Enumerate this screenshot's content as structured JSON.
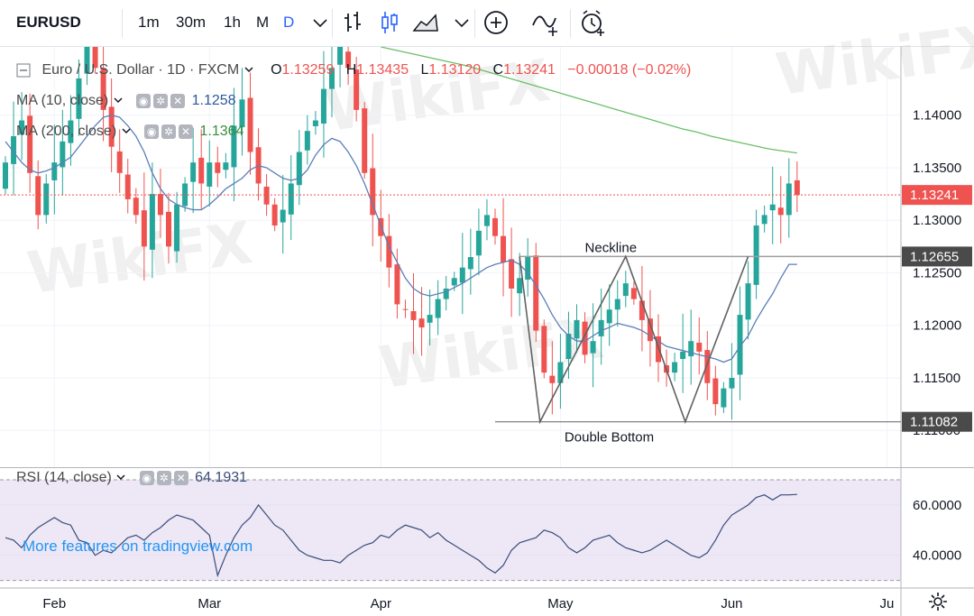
{
  "symbol": "EURUSD",
  "intervals": [
    {
      "label": "1m",
      "active": false
    },
    {
      "label": "30m",
      "active": false
    },
    {
      "label": "1h",
      "active": false
    },
    {
      "label": "M",
      "active": false
    },
    {
      "label": "D",
      "active": true
    }
  ],
  "toolbar_icons": [
    "chevron-down-icon",
    "bar-chart-icon",
    "candlestick-icon",
    "area-chart-icon",
    "chevron-down-icon",
    "plus-circle-icon",
    "indicator-icon",
    "alarm-clock-icon"
  ],
  "legend": {
    "title": "Euro / U.S. Dollar · 1D · FXCM",
    "o_label": "O",
    "o_value": "1.13259",
    "h_label": "H",
    "h_value": "1.13435",
    "l_label": "L",
    "l_value": "1.13120",
    "c_label": "C",
    "c_value": "1.13241",
    "change": "−0.00018 (−0.02%)",
    "ma10_label": "MA (10, close)",
    "ma10_value": "1.1258",
    "ma200_label": "MA (200, close)",
    "ma200_value": "1.1364"
  },
  "rsi_legend": {
    "label": "RSI (14, close)",
    "value": "64.1931"
  },
  "tradingview_link": "More features on tradingview.com",
  "watermark_text": "WikiFX",
  "colors": {
    "up": "#26a69a",
    "down": "#ef5350",
    "ma10": "#5b7fb8",
    "ma200": "#6abf69",
    "rsi": "#7e57c2",
    "price_tag": "#4a4a4a",
    "last_price": "#ef5350"
  },
  "chart_data": {
    "type": "candlestick",
    "annotations": {
      "neckline_label": "Neckline",
      "neckline_price": 1.12655,
      "neckline_price_label": "1.12655",
      "double_bottom_label": "Double Bottom",
      "double_bottom_price": 1.11082,
      "double_bottom_price_label": "1.11082",
      "last_price": 1.13241,
      "last_price_label": "1.13241"
    },
    "y_ticks": [
      "1.14000",
      "1.13500",
      "1.13000",
      "1.12500",
      "1.12000",
      "1.11500",
      "1.11000"
    ],
    "y_tick_values": [
      1.14,
      1.135,
      1.13,
      1.125,
      1.12,
      1.115,
      1.11
    ],
    "ylim": [
      1.1065,
      1.1465
    ],
    "x_ticks": [
      {
        "label": "Feb",
        "index": 6
      },
      {
        "label": "Mar",
        "index": 25
      },
      {
        "label": "Apr",
        "index": 46
      },
      {
        "label": "May",
        "index": 68
      },
      {
        "label": "Jun",
        "index": 89
      },
      {
        "label": "Ju",
        "index": 108
      }
    ],
    "closes": [
      1.1355,
      1.138,
      1.1395,
      1.1345,
      1.1305,
      1.1335,
      1.1355,
      1.1375,
      1.1395,
      1.1435,
      1.147,
      1.1445,
      1.1405,
      1.137,
      1.1345,
      1.132,
      1.1305,
      1.1275,
      1.1325,
      1.1305,
      1.1275,
      1.1315,
      1.1335,
      1.1355,
      1.1335,
      1.1355,
      1.1345,
      1.1355,
      1.139,
      1.1415,
      1.1365,
      1.1335,
      1.1315,
      1.1295,
      1.131,
      1.1335,
      1.1365,
      1.1385,
      1.1395,
      1.1425,
      1.1445,
      1.1465,
      1.1445,
      1.1405,
      1.1345,
      1.1305,
      1.1285,
      1.1255,
      1.122,
      1.1215,
      1.1205,
      1.1198,
      1.121,
      1.1225,
      1.1235,
      1.1245,
      1.1255,
      1.1265,
      1.129,
      1.1305,
      1.1285,
      1.126,
      1.1235,
      1.1245,
      1.1265,
      1.1195,
      1.1155,
      1.1145,
      1.1165,
      1.1192,
      1.1205,
      1.1172,
      1.1185,
      1.1205,
      1.1215,
      1.1225,
      1.124,
      1.1225,
      1.1205,
      1.1185,
      1.1165,
      1.1155,
      1.1165,
      1.1175,
      1.1185,
      1.1175,
      1.1145,
      1.1125,
      1.114,
      1.115,
      1.121,
      1.124,
      1.1295,
      1.1305,
      1.1315,
      1.1305,
      1.1335,
      1.13241
    ],
    "ma10": [
      1.1375,
      1.1365,
      1.1355,
      1.1348,
      1.1345,
      1.1347,
      1.135,
      1.1355,
      1.136,
      1.137,
      1.138,
      1.139,
      1.1398,
      1.14,
      1.1398,
      1.139,
      1.138,
      1.1365,
      1.1345,
      1.133,
      1.132,
      1.1315,
      1.1312,
      1.131,
      1.131,
      1.1315,
      1.1322,
      1.133,
      1.1335,
      1.134,
      1.1348,
      1.1352,
      1.135,
      1.1345,
      1.134,
      1.1338,
      1.134,
      1.1348,
      1.1362,
      1.1372,
      1.1378,
      1.1375,
      1.1365,
      1.1352,
      1.1335,
      1.1315,
      1.1295,
      1.1275,
      1.126,
      1.1245,
      1.1235,
      1.123,
      1.1228,
      1.123,
      1.1232,
      1.1236,
      1.124,
      1.1245,
      1.125,
      1.1255,
      1.1258,
      1.126,
      1.1262,
      1.1258,
      1.125,
      1.1238,
      1.1225,
      1.121,
      1.1198,
      1.119,
      1.1185,
      1.1185,
      1.119,
      1.1195,
      1.1198,
      1.1202,
      1.12,
      1.1198,
      1.1195,
      1.119,
      1.1185,
      1.118,
      1.1178,
      1.1176,
      1.1174,
      1.1172,
      1.117,
      1.1168,
      1.1165,
      1.1168,
      1.118,
      1.119,
      1.1205,
      1.1218,
      1.123,
      1.1245,
      1.1258,
      1.1258
    ],
    "ma200": {
      "start_index": 46,
      "end_index": 97,
      "values": [
        1.1465,
        1.1462,
        1.1459,
        1.1456,
        1.1453,
        1.145,
        1.1447,
        1.1443,
        1.1439,
        1.1435,
        1.1431,
        1.1427,
        1.1423,
        1.1419,
        1.1415,
        1.1411,
        1.1407,
        1.1403,
        1.1399,
        1.1395,
        1.1391,
        1.1387,
        1.1384,
        1.138,
        1.1377,
        1.1374,
        1.1371,
        1.1368,
        1.1366,
        1.1364
      ]
    },
    "rsi": {
      "y_ticks": [
        "60.0000",
        "40.0000"
      ],
      "y_tick_values": [
        60,
        40
      ],
      "ylim": [
        27,
        75
      ],
      "band": [
        30,
        70
      ],
      "values": [
        47,
        46,
        43,
        48,
        51,
        53,
        55,
        53,
        52,
        46,
        45,
        40,
        42,
        41,
        44,
        47,
        48,
        46,
        49,
        51,
        54,
        56,
        55,
        54,
        51,
        48,
        32,
        40,
        47,
        52,
        55,
        60,
        56,
        52,
        50,
        46,
        42,
        40,
        39,
        38,
        38,
        37,
        40,
        42,
        44,
        45,
        48,
        47,
        50,
        52,
        51,
        50,
        47,
        49,
        46,
        44,
        42,
        40,
        38,
        35,
        33,
        36,
        42,
        45,
        46,
        47,
        50,
        49,
        47,
        43,
        41,
        43,
        46,
        47,
        48,
        45,
        43,
        42,
        41,
        42,
        44,
        46,
        44,
        42,
        40,
        39,
        41,
        46,
        52,
        56,
        58,
        60,
        63,
        64,
        62,
        64,
        64,
        64.1931
      ]
    }
  }
}
